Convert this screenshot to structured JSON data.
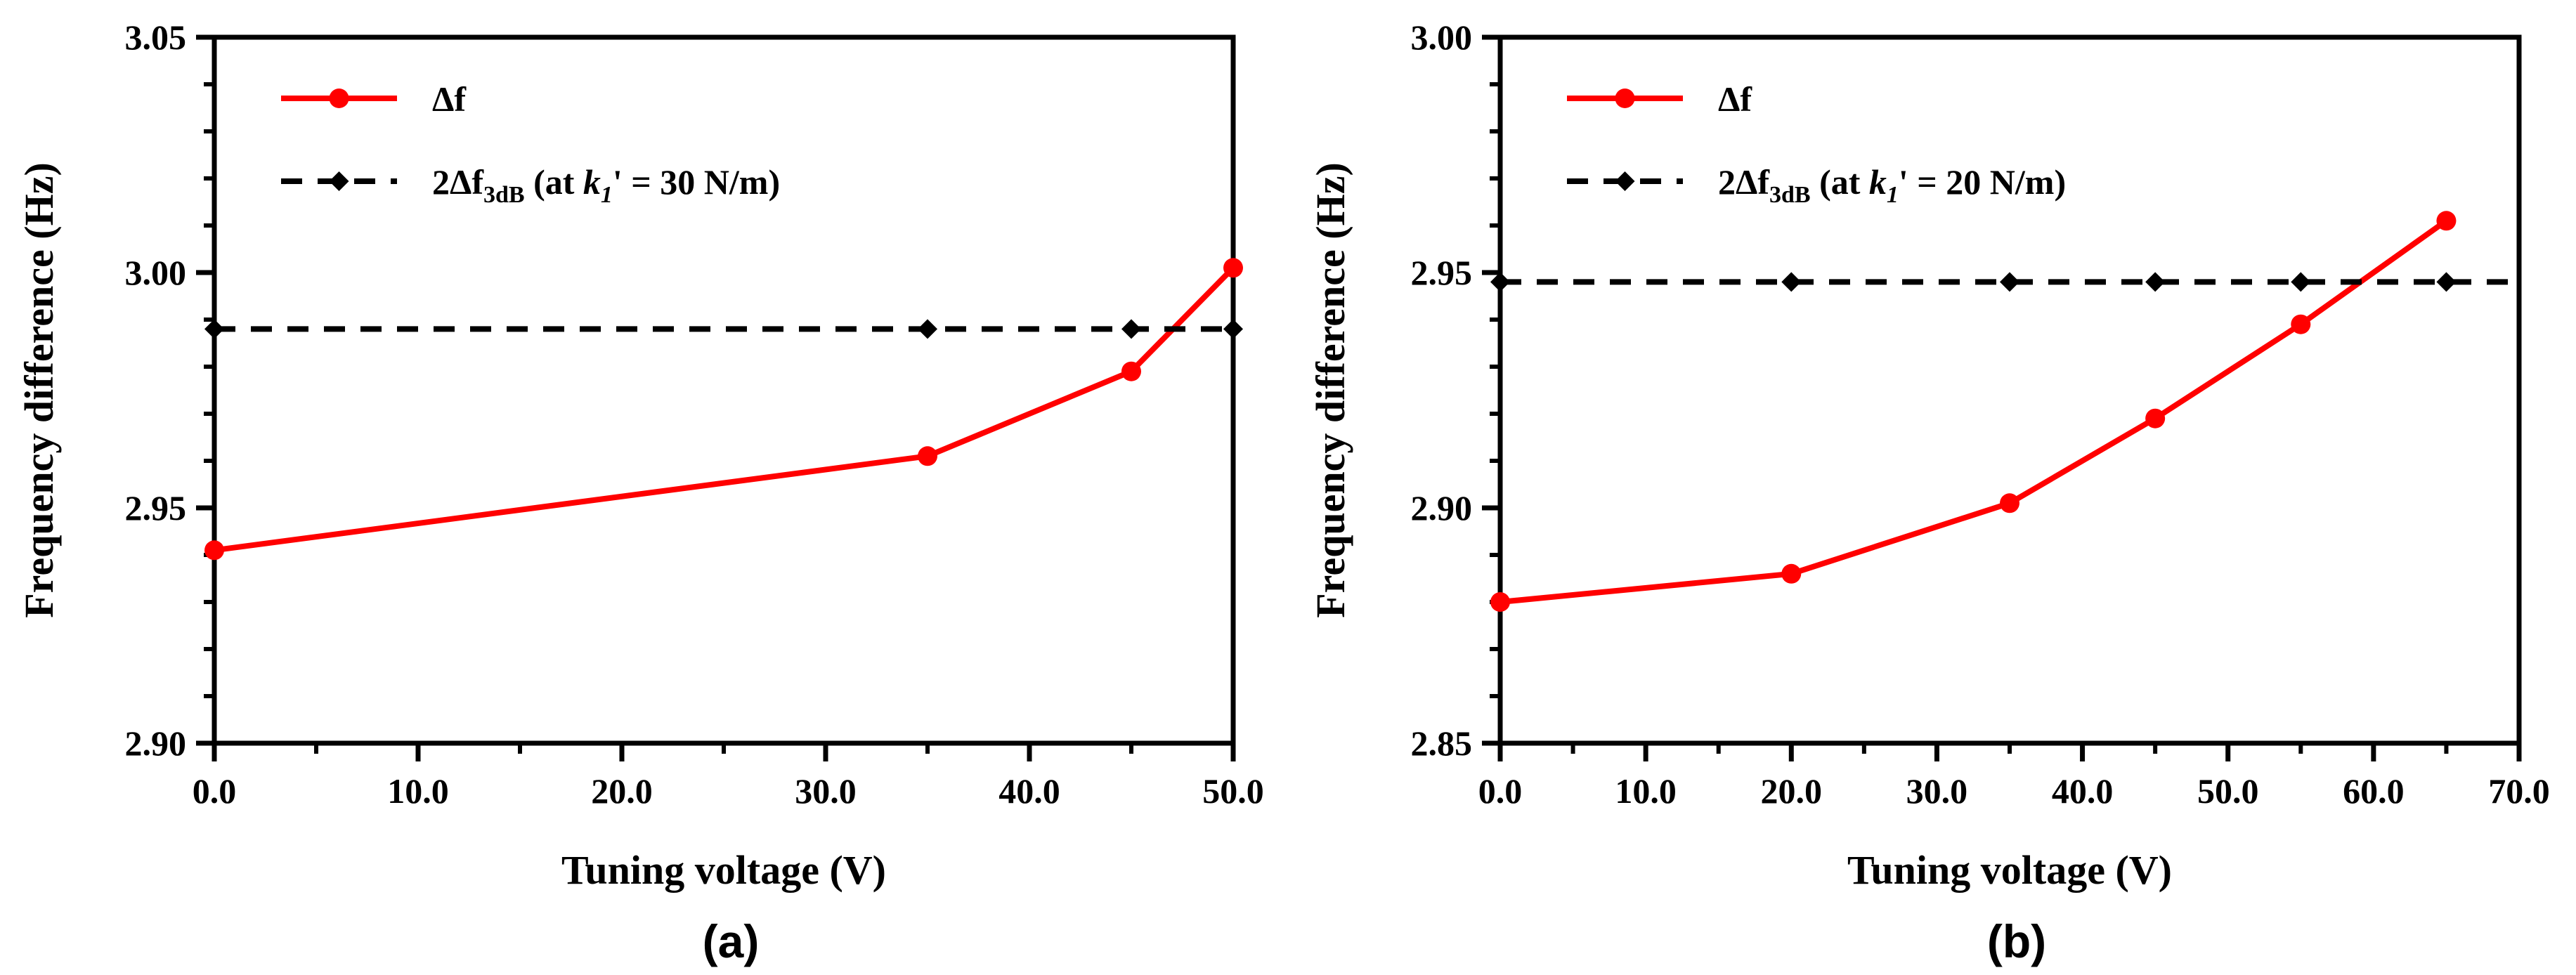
{
  "chart_data": [
    {
      "panel_label": "(a)",
      "type": "line",
      "xlabel": "Tuning voltage (V)",
      "ylabel": "Frequency difference (Hz)",
      "xlim": [
        0,
        50
      ],
      "ylim": [
        2.9,
        3.05
      ],
      "x_ticks": [
        "0.0",
        "10.0",
        "20.0",
        "30.0",
        "40.0",
        "50.0"
      ],
      "y_ticks": [
        "2.90",
        "2.95",
        "3.00",
        "3.05"
      ],
      "legend_position": "top-left",
      "series": [
        {
          "name": "Δf",
          "legend": {
            "main": "Δf",
            "sub": "",
            "rest": ""
          },
          "style": "solid-circle",
          "color": "#ff0000",
          "x": [
            0,
            35,
            45,
            50
          ],
          "y": [
            2.941,
            2.961,
            2.979,
            3.001
          ]
        },
        {
          "name": "2Δf3dB (at k1' = 30 N/m)",
          "legend": {
            "main": "2Δf",
            "sub": "3dB",
            "rest": " (at ",
            "k": "k",
            "ksub": "1",
            "tail": "' = 30 N/m)"
          },
          "style": "dashed-diamond",
          "color": "#000000",
          "x": [
            0,
            35,
            45,
            50
          ],
          "y": [
            2.988,
            2.988,
            2.988,
            2.988
          ]
        }
      ]
    },
    {
      "panel_label": "(b)",
      "type": "line",
      "xlabel": "Tuning voltage (V)",
      "ylabel": "Frequency difference (Hz)",
      "xlim": [
        0,
        70
      ],
      "ylim": [
        2.85,
        3.0
      ],
      "x_ticks": [
        "0.0",
        "10.0",
        "20.0",
        "30.0",
        "40.0",
        "50.0",
        "60.0",
        "70.0"
      ],
      "y_ticks": [
        "2.85",
        "2.90",
        "2.95",
        "3.00"
      ],
      "legend_position": "top-left",
      "series": [
        {
          "name": "Δf",
          "legend": {
            "main": "Δf",
            "sub": "",
            "rest": ""
          },
          "style": "solid-circle",
          "color": "#ff0000",
          "x": [
            0,
            20,
            35,
            45,
            55,
            65
          ],
          "y": [
            2.88,
            2.886,
            2.901,
            2.919,
            2.939,
            2.961
          ]
        },
        {
          "name": "2Δf3dB (at k1' = 20 N/m)",
          "legend": {
            "main": "2Δf",
            "sub": "3dB",
            "rest": " (at ",
            "k": "k",
            "ksub": "1",
            "tail": "' = 20 N/m)"
          },
          "style": "dashed-diamond",
          "color": "#000000",
          "x": [
            0,
            20,
            35,
            45,
            55,
            65
          ],
          "y": [
            2.948,
            2.948,
            2.948,
            2.948,
            2.948,
            2.948
          ]
        }
      ]
    }
  ]
}
